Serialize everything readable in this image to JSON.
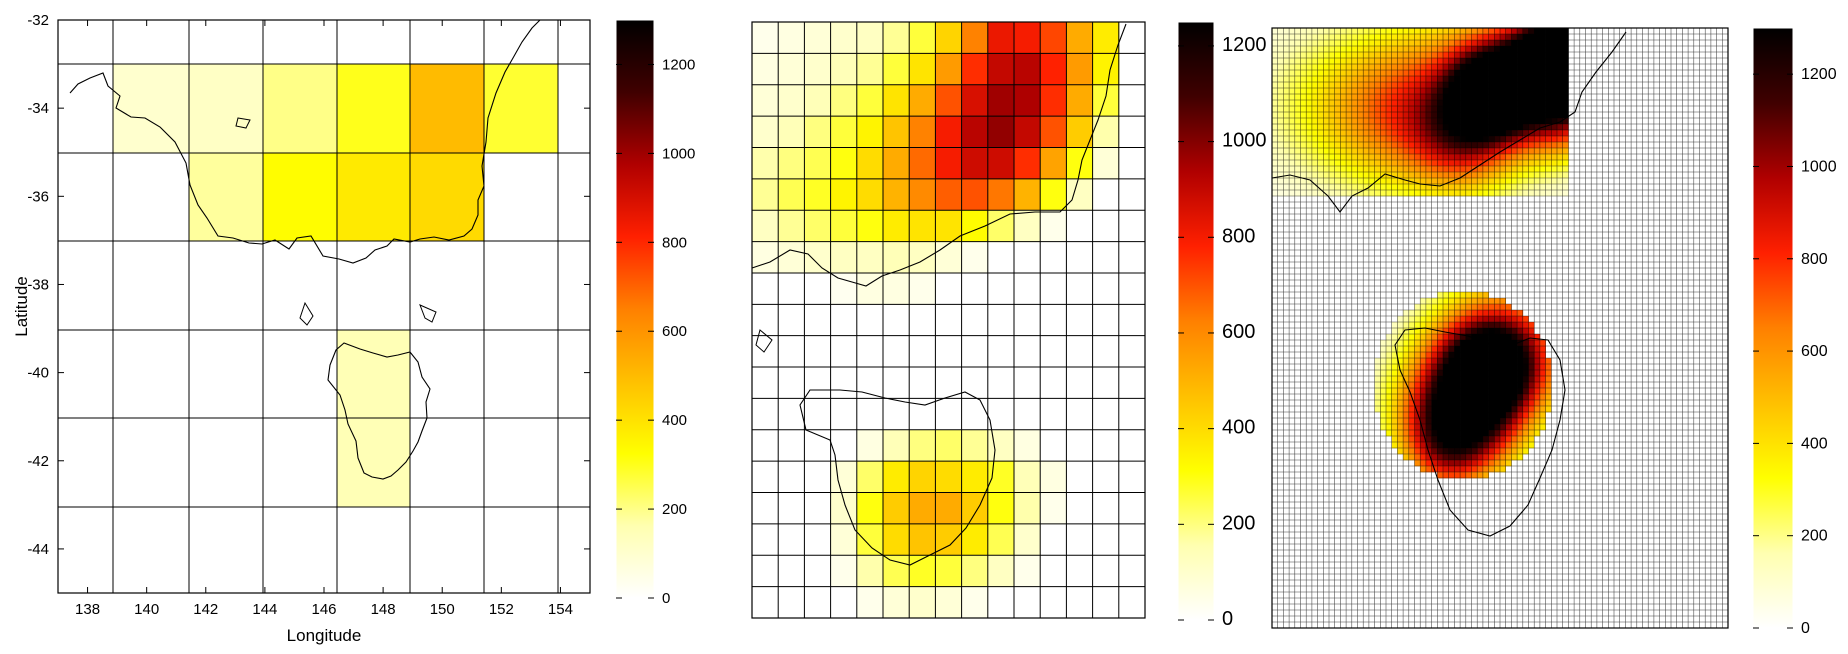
{
  "colors": {
    "stops": [
      "#ffffff",
      "#ffffb0",
      "#ffff00",
      "#ffc000",
      "#ff8000",
      "#ff2000",
      "#b00000",
      "#400000",
      "#000000"
    ],
    "grid": "#000000",
    "coast": "#000000"
  },
  "panels": [
    {
      "name": "coarse-grid-map",
      "xlabel": "Longitude",
      "ylabel": "Latitude",
      "x_ticks": [
        "138",
        "140",
        "142",
        "144",
        "146",
        "148",
        "150",
        "152",
        "154"
      ],
      "y_ticks": [
        "-32",
        "-34",
        "-36",
        "-38",
        "-40",
        "-42",
        "-44"
      ],
      "colorbar_ticks": [
        "0",
        "200",
        "400",
        "600",
        "800",
        "1000",
        "1200"
      ],
      "colorbar_max": 1300
    },
    {
      "name": "medium-grid-map",
      "colorbar_ticks": [
        "0",
        "200",
        "400",
        "600",
        "800",
        "1000",
        "1200"
      ],
      "colorbar_max": 1250
    },
    {
      "name": "fine-grid-map",
      "colorbar_ticks": [
        "0",
        "200",
        "400",
        "600",
        "800",
        "1000",
        "1200"
      ],
      "colorbar_max": 1300
    }
  ],
  "chart_data": [
    {
      "type": "heatmap",
      "grid": "2 degree",
      "xlabel": "Longitude",
      "ylabel": "Latitude",
      "xlim": [
        137,
        155
      ],
      "ylim": [
        -45,
        -32
      ],
      "colorbar_range": [
        0,
        1300
      ],
      "cells": [
        {
          "lon": 139.5,
          "lat": -33,
          "value": 120
        },
        {
          "lon": 141.5,
          "lat": -33,
          "value": 250
        },
        {
          "lon": 143.5,
          "lat": -33,
          "value": 240
        },
        {
          "lon": 145.5,
          "lat": -33,
          "value": 280
        },
        {
          "lon": 147.5,
          "lat": -33,
          "value": 300
        },
        {
          "lon": 149.5,
          "lat": -33,
          "value": 450
        },
        {
          "lon": 151.5,
          "lat": -33,
          "value": 280
        },
        {
          "lon": 139.5,
          "lat": -34.5,
          "value": 100
        },
        {
          "lon": 141.5,
          "lat": -34.5,
          "value": 80
        },
        {
          "lon": 143.5,
          "lat": -34.5,
          "value": 120
        },
        {
          "lon": 145.5,
          "lat": -34.5,
          "value": 200
        },
        {
          "lon": 147.5,
          "lat": -34.5,
          "value": 300
        },
        {
          "lon": 149.5,
          "lat": -34.5,
          "value": 500
        },
        {
          "lon": 141.5,
          "lat": -36,
          "value": 80
        },
        {
          "lon": 143.5,
          "lat": -36,
          "value": 180
        },
        {
          "lon": 145.5,
          "lat": -36,
          "value": 330
        },
        {
          "lon": 147.5,
          "lat": -36,
          "value": 380
        },
        {
          "lon": 149.5,
          "lat": -36,
          "value": 420
        },
        {
          "lon": 147.5,
          "lat": -40,
          "value": 150
        },
        {
          "lon": 147.5,
          "lat": -42,
          "value": 150
        }
      ]
    },
    {
      "type": "heatmap",
      "grid": "medium",
      "colorbar_range": [
        0,
        1250
      ],
      "cells_note": "rows of values, top to bottom, 14 columns"
    },
    {
      "type": "heatmap",
      "grid": "fine",
      "colorbar_range": [
        0,
        1300
      ]
    }
  ]
}
